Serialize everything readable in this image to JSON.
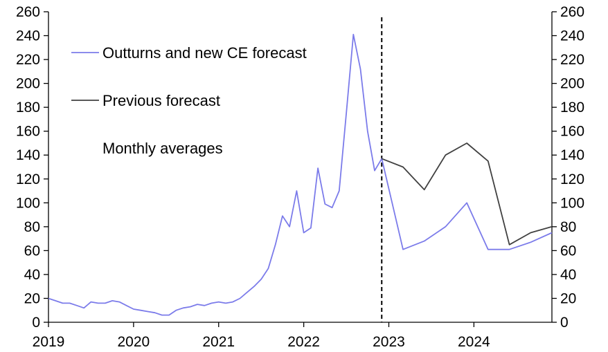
{
  "chart_data": {
    "type": "line",
    "title": "",
    "xlabel": "",
    "ylabel": "",
    "ylim": [
      0,
      260
    ],
    "y_ticks": [
      0,
      20,
      40,
      60,
      80,
      100,
      120,
      140,
      160,
      180,
      200,
      220,
      240,
      260
    ],
    "x_tick_labels": [
      "2019",
      "2020",
      "2021",
      "2022",
      "2023",
      "2024"
    ],
    "x_range": [
      "2019-01",
      "2024-12"
    ],
    "secondary_y_axis": true,
    "grid": false,
    "legend_position": "top-left",
    "annotation": "Monthly averages",
    "forecast_start": "2022-12",
    "series": [
      {
        "name": "Outturns and new CE forecast",
        "color": "#7b7bea",
        "points": [
          [
            "2019-01",
            20
          ],
          [
            "2019-02",
            18
          ],
          [
            "2019-03",
            16
          ],
          [
            "2019-04",
            16
          ],
          [
            "2019-05",
            14
          ],
          [
            "2019-06",
            12
          ],
          [
            "2019-07",
            17
          ],
          [
            "2019-08",
            16
          ],
          [
            "2019-09",
            16
          ],
          [
            "2019-10",
            18
          ],
          [
            "2019-11",
            17
          ],
          [
            "2019-12",
            14
          ],
          [
            "2020-01",
            11
          ],
          [
            "2020-02",
            10
          ],
          [
            "2020-03",
            9
          ],
          [
            "2020-04",
            8
          ],
          [
            "2020-05",
            6
          ],
          [
            "2020-06",
            6
          ],
          [
            "2020-07",
            10
          ],
          [
            "2020-08",
            12
          ],
          [
            "2020-09",
            13
          ],
          [
            "2020-10",
            15
          ],
          [
            "2020-11",
            14
          ],
          [
            "2020-12",
            16
          ],
          [
            "2021-01",
            17
          ],
          [
            "2021-02",
            16
          ],
          [
            "2021-03",
            17
          ],
          [
            "2021-04",
            20
          ],
          [
            "2021-05",
            25
          ],
          [
            "2021-06",
            30
          ],
          [
            "2021-07",
            36
          ],
          [
            "2021-08",
            45
          ],
          [
            "2021-09",
            65
          ],
          [
            "2021-10",
            89
          ],
          [
            "2021-11",
            80
          ],
          [
            "2021-12",
            110
          ],
          [
            "2022-01",
            75
          ],
          [
            "2022-02",
            79
          ],
          [
            "2022-03",
            129
          ],
          [
            "2022-04",
            99
          ],
          [
            "2022-05",
            96
          ],
          [
            "2022-06",
            110
          ],
          [
            "2022-07",
            175
          ],
          [
            "2022-08",
            241
          ],
          [
            "2022-09",
            212
          ],
          [
            "2022-10",
            160
          ],
          [
            "2022-11",
            127
          ],
          [
            "2022-12",
            137
          ],
          [
            "2023-03",
            61
          ],
          [
            "2023-06",
            68
          ],
          [
            "2023-09",
            80
          ],
          [
            "2023-12",
            100
          ],
          [
            "2024-03",
            61
          ],
          [
            "2024-06",
            61
          ],
          [
            "2024-09",
            67
          ],
          [
            "2024-12",
            75
          ]
        ]
      },
      {
        "name": "Previous forecast",
        "color": "#404040",
        "points": [
          [
            "2022-12",
            137
          ],
          [
            "2023-03",
            130
          ],
          [
            "2023-06",
            111
          ],
          [
            "2023-09",
            140
          ],
          [
            "2023-12",
            150
          ],
          [
            "2024-03",
            135
          ],
          [
            "2024-06",
            65
          ],
          [
            "2024-09",
            75
          ],
          [
            "2024-12",
            80
          ]
        ]
      }
    ]
  }
}
